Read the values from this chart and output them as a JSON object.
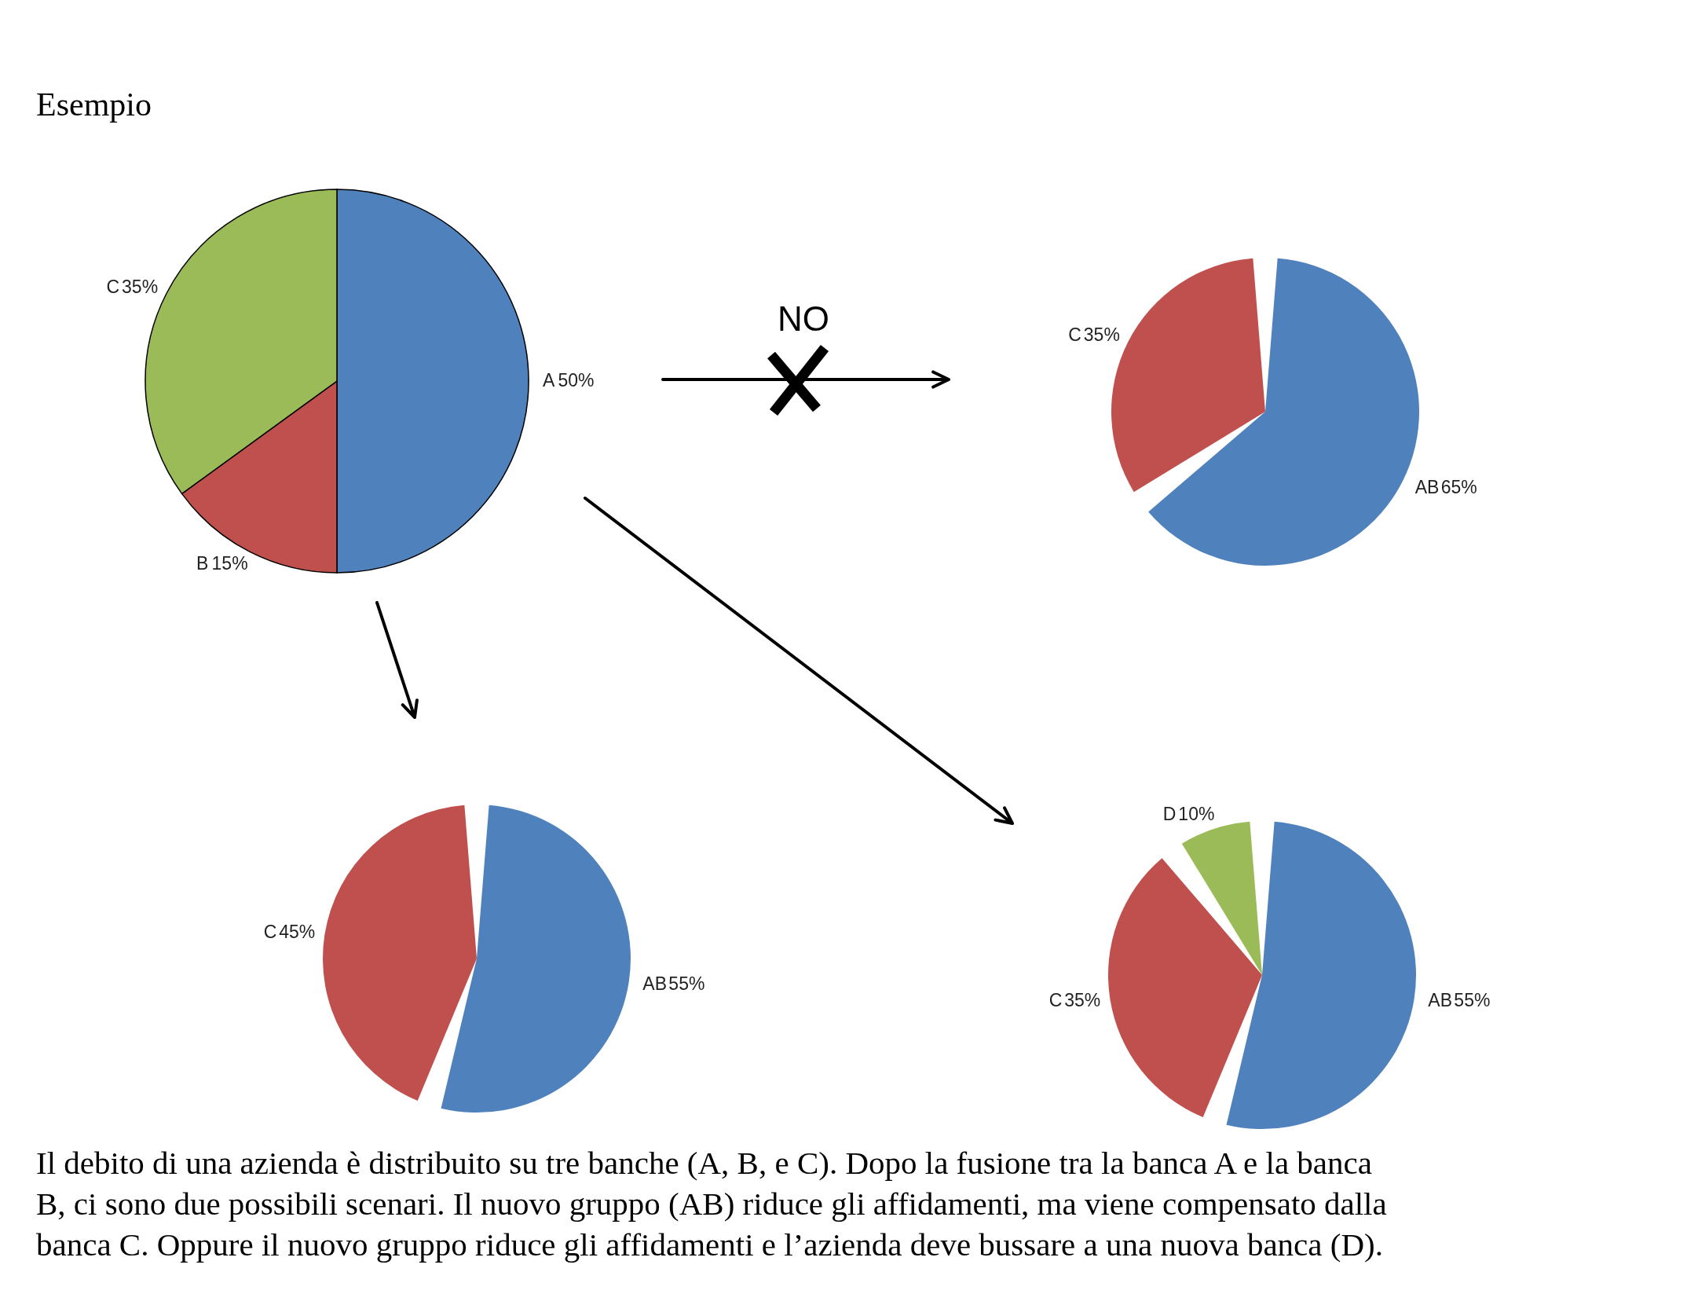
{
  "chart_data": [
    {
      "type": "pie",
      "title": "Esempio",
      "categories": [
        "A",
        "B",
        "C"
      ],
      "values": [
        50,
        15,
        35
      ],
      "colors": [
        "#4f81bd",
        "#c0504d",
        "#9bbb59"
      ],
      "value_labels": [
        "50%",
        "15%",
        "35%"
      ],
      "annotations": [
        "NO",
        "Il debito di una azienda è distribuito su tre banche (A, B, e C). Dopo la fusione tra la banca A e la banca B, ci sono due possibili scenari. Il nuovo gruppo (AB) riduce gli affidamenti, ma viene compensato dalla banca C. Oppure il nuovo gruppo riduce gli affidamenti e l’azienda deve bussare a una nuova banca (D)."
      ]
    },
    {
      "type": "pie",
      "categories": [
        "AB",
        "C"
      ],
      "values": [
        65,
        35
      ],
      "colors": [
        "#4f81bd",
        "#c0504d"
      ],
      "value_labels": [
        "65%",
        "35%"
      ]
    },
    {
      "type": "pie",
      "categories": [
        "AB",
        "C"
      ],
      "values": [
        55,
        45
      ],
      "colors": [
        "#4f81bd",
        "#c0504d"
      ],
      "value_labels": [
        "55%",
        "45%"
      ]
    },
    {
      "type": "pie",
      "categories": [
        "AB",
        "C",
        "D"
      ],
      "values": [
        55,
        35,
        10
      ],
      "colors": [
        "#4f81bd",
        "#c0504d",
        "#9bbb59"
      ],
      "value_labels": [
        "55%",
        "35%",
        "10%"
      ]
    }
  ]
}
